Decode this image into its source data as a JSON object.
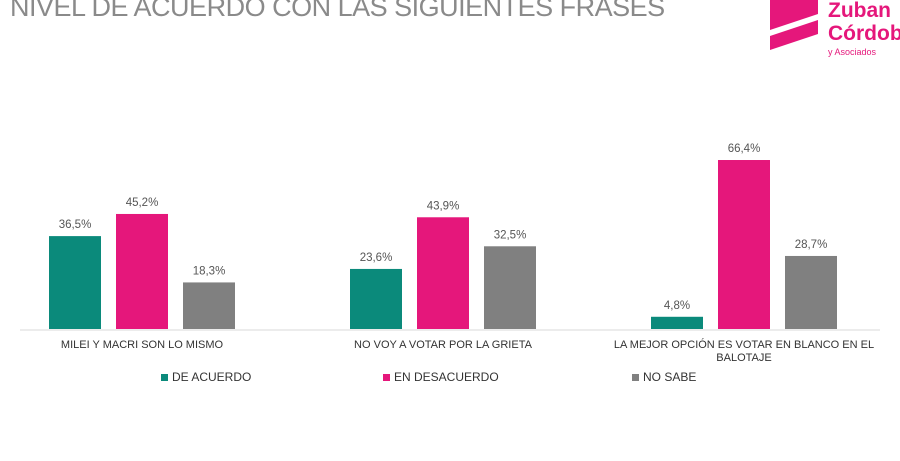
{
  "title": "NIVEL DE ACUERDO CON LAS SIGUIENTES FRASES",
  "logo": {
    "line1": "Zuban",
    "line2": "Córdoba",
    "line3": "y Asociados"
  },
  "chart_data": {
    "type": "bar",
    "title": "NIVEL DE ACUERDO CON LAS SIGUIENTES FRASES",
    "categories": [
      [
        "MILEI Y MACRI SON LO MISMO"
      ],
      [
        "NO VOY A VOTAR POR LA GRIETA"
      ],
      [
        "LA MEJOR OPCIÓN ES VOTAR EN BLANCO EN EL",
        "BALOTAJE"
      ]
    ],
    "series": [
      {
        "name": "DE ACUERDO",
        "color": "#0b8a7b",
        "values": [
          36.5,
          23.6,
          4.8
        ],
        "labels": [
          "36,5%",
          "23,6%",
          "4,8%"
        ]
      },
      {
        "name": "EN DESACUERDO",
        "color": "#e5177b",
        "values": [
          45.2,
          43.9,
          66.4
        ],
        "labels": [
          "45,2%",
          "43,9%",
          "66,4%"
        ]
      },
      {
        "name": "NO SABE",
        "color": "#808080",
        "values": [
          18.3,
          32.5,
          28.7
        ],
        "labels": [
          "18,3%",
          "32,5%",
          "28,7%"
        ]
      }
    ],
    "ylim": [
      0,
      70
    ],
    "grid": false,
    "legend": "bottom"
  }
}
